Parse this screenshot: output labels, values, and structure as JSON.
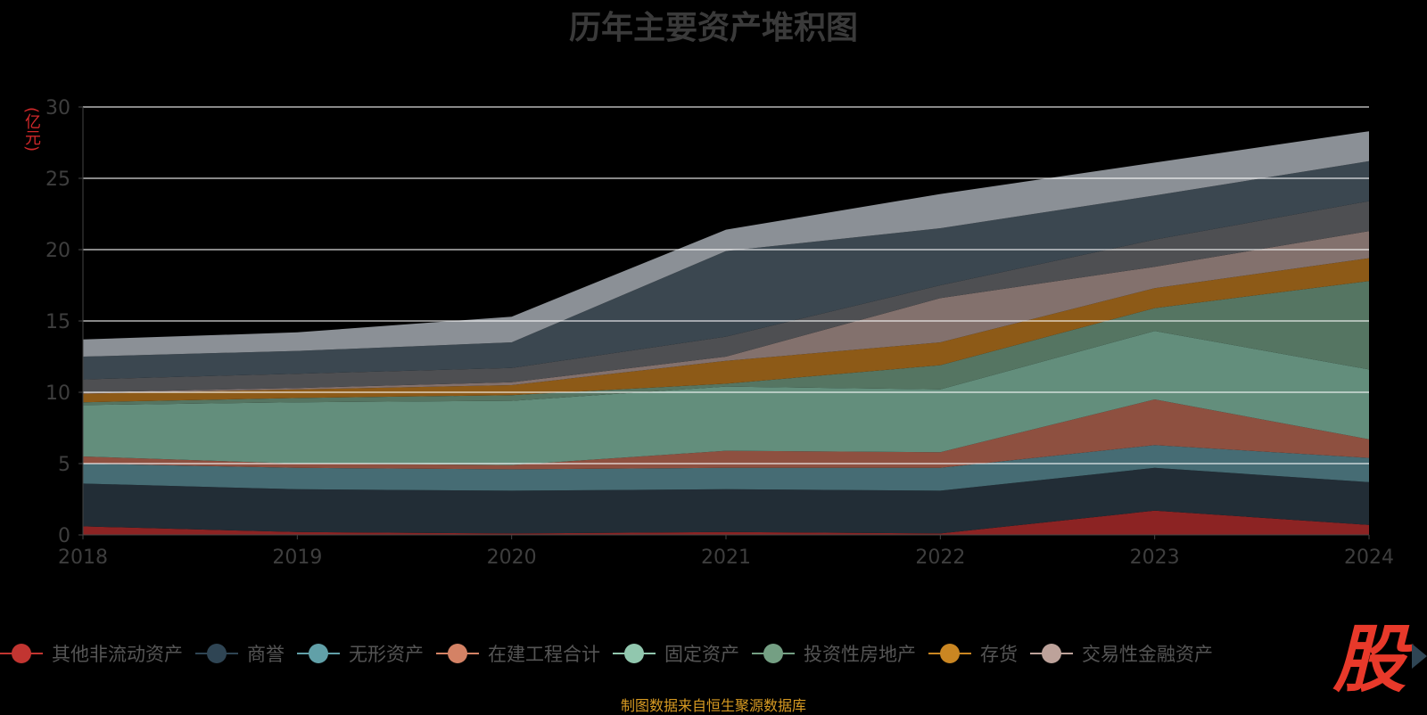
{
  "title": "历年主要资产堆积图",
  "unit_label": "(亿元)",
  "source_text": "制图数据来自恒生聚源数据库",
  "logo_text": "股",
  "legend_next_icon": "chevron-right-icon",
  "chart_data": {
    "type": "area",
    "stacked": true,
    "title": "历年主要资产堆积图",
    "ylabel": "(亿元)",
    "ylim": [
      0,
      30
    ],
    "yticks": [
      0,
      5,
      10,
      15,
      20,
      25,
      30
    ],
    "grid": true,
    "x": [
      "2018",
      "2019",
      "2020",
      "2021",
      "2022",
      "2023",
      "2024"
    ],
    "series": [
      {
        "name": "其他非流动资产",
        "color": "#c23531",
        "fill": "#8c2323",
        "values": [
          0.6,
          0.2,
          0.1,
          0.2,
          0.1,
          1.7,
          0.7
        ]
      },
      {
        "name": "商誉",
        "color": "#2f4554",
        "fill": "#222d36",
        "values": [
          3.0,
          3.0,
          3.0,
          3.0,
          3.0,
          3.0,
          3.0
        ]
      },
      {
        "name": "无形资产",
        "color": "#61a0a8",
        "fill": "#466c74",
        "values": [
          1.4,
          1.5,
          1.5,
          1.5,
          1.6,
          1.6,
          1.7
        ]
      },
      {
        "name": "在建工程合计",
        "color": "#d48265",
        "fill": "#8e5040",
        "values": [
          0.5,
          0.3,
          0.3,
          1.2,
          1.1,
          3.2,
          1.3
        ]
      },
      {
        "name": "固定资产",
        "color": "#91c7ae",
        "fill": "#638e7c",
        "values": [
          3.6,
          4.3,
          4.5,
          4.5,
          4.4,
          4.8,
          4.9
        ]
      },
      {
        "name": "投资性房地产",
        "color": "#749f83",
        "fill": "#557562",
        "values": [
          0.2,
          0.3,
          0.4,
          0.2,
          1.7,
          1.6,
          6.2
        ]
      },
      {
        "name": "存货",
        "color": "#ca8622",
        "fill": "#8d5a17",
        "values": [
          0.6,
          0.6,
          0.7,
          1.6,
          1.6,
          1.4,
          1.6
        ]
      },
      {
        "name": "交易性金融资产",
        "color": "#bda29a",
        "fill": "#83716d",
        "values": [
          0.1,
          0.1,
          0.2,
          0.3,
          3.1,
          1.5,
          1.9
        ]
      },
      {
        "name": "",
        "color": "#6e7074",
        "fill": "#4e4f52",
        "values": [
          0.9,
          1.0,
          1.0,
          1.4,
          0.9,
          1.9,
          2.1
        ]
      },
      {
        "name": "",
        "color": "#546570",
        "fill": "#3b4750",
        "values": [
          1.6,
          1.6,
          1.8,
          6.0,
          4.0,
          3.1,
          2.8
        ]
      },
      {
        "name": "",
        "color": "#c4ccd3",
        "fill": "#8b9096",
        "values": [
          1.2,
          1.3,
          1.8,
          1.5,
          2.4,
          2.3,
          2.1
        ]
      }
    ]
  }
}
